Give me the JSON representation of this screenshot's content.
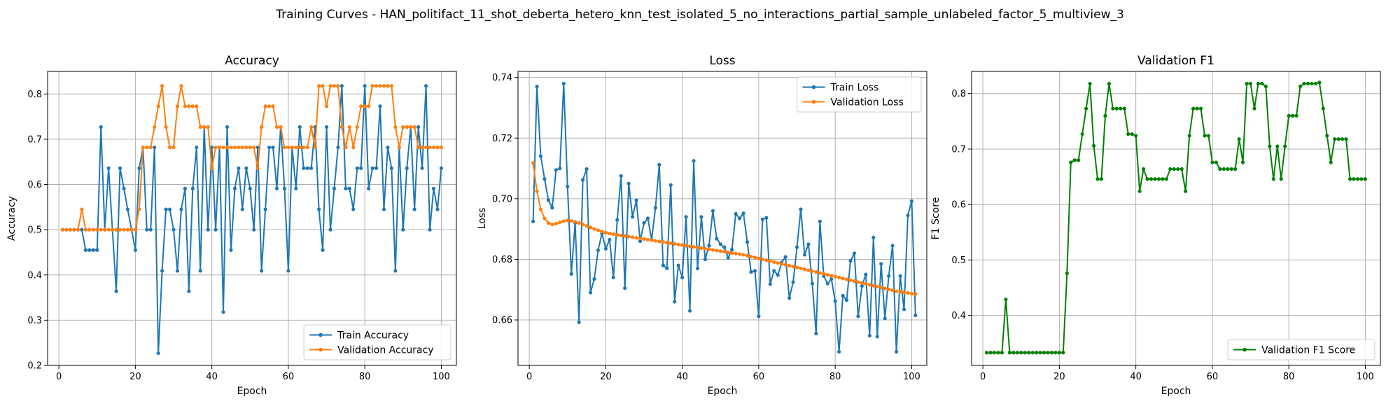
{
  "chart_data": {
    "type": "line",
    "suptitle": "Training Curves - HAN_politifact_11_shot_deberta_hetero_knn_test_isolated_5_no_interactions_partial_sample_unlabeled_factor_5_multiview_3",
    "colors": {
      "train": "#1f77b4",
      "validation": "#ff7f0e",
      "f1": "#008000",
      "grid": "#b0b0b0"
    },
    "subplots": [
      {
        "title": "Accuracy",
        "xlabel": "Epoch",
        "ylabel": "Accuracy",
        "xlim": [
          -2.95,
          103.95
        ],
        "ylim": [
          0.2,
          0.85
        ],
        "xticks": [
          0,
          20,
          40,
          60,
          80,
          100
        ],
        "xtick_labels": [
          "0",
          "20",
          "40",
          "60",
          "80",
          "100"
        ],
        "yticks": [
          0.2,
          0.3,
          0.4,
          0.5,
          0.6,
          0.7,
          0.8
        ],
        "ytick_labels": [
          "0.2",
          "0.3",
          "0.4",
          "0.5",
          "0.6",
          "0.7",
          "0.8"
        ],
        "legend": "lower-right",
        "series": [
          {
            "name": "Train Accuracy",
            "color_key": "train",
            "values": [
              0.5,
              0.5,
              0.5,
              0.5,
              0.5,
              0.5,
              0.455,
              0.455,
              0.455,
              0.455,
              0.727,
              0.5,
              0.636,
              0.5,
              0.364,
              0.636,
              0.591,
              0.545,
              0.5,
              0.455,
              0.636,
              0.682,
              0.5,
              0.5,
              0.682,
              0.227,
              0.409,
              0.545,
              0.545,
              0.5,
              0.409,
              0.545,
              0.591,
              0.364,
              0.591,
              0.682,
              0.409,
              0.727,
              0.5,
              0.682,
              0.5,
              0.682,
              0.318,
              0.727,
              0.455,
              0.591,
              0.636,
              0.545,
              0.636,
              0.591,
              0.5,
              0.682,
              0.409,
              0.545,
              0.682,
              0.682,
              0.591,
              0.727,
              0.591,
              0.409,
              0.682,
              0.591,
              0.727,
              0.636,
              0.636,
              0.636,
              0.727,
              0.545,
              0.455,
              0.727,
              0.5,
              0.591,
              0.682,
              0.818,
              0.591,
              0.591,
              0.545,
              0.636,
              0.636,
              0.818,
              0.591,
              0.636,
              0.636,
              0.773,
              0.545,
              0.682,
              0.636,
              0.409,
              0.682,
              0.5,
              0.636,
              0.727,
              0.545,
              0.727,
              0.636,
              0.818,
              0.5,
              0.591,
              0.545,
              0.636
            ]
          },
          {
            "name": "Validation Accuracy",
            "color_key": "validation",
            "values": [
              0.5,
              0.5,
              0.5,
              0.5,
              0.5,
              0.545,
              0.5,
              0.5,
              0.5,
              0.5,
              0.5,
              0.5,
              0.5,
              0.5,
              0.5,
              0.5,
              0.5,
              0.5,
              0.5,
              0.5,
              0.545,
              0.682,
              0.682,
              0.682,
              0.727,
              0.773,
              0.818,
              0.727,
              0.682,
              0.682,
              0.773,
              0.818,
              0.773,
              0.773,
              0.773,
              0.773,
              0.727,
              0.727,
              0.727,
              0.636,
              0.682,
              0.682,
              0.682,
              0.682,
              0.682,
              0.682,
              0.682,
              0.682,
              0.682,
              0.682,
              0.682,
              0.636,
              0.727,
              0.773,
              0.773,
              0.773,
              0.727,
              0.727,
              0.682,
              0.682,
              0.682,
              0.682,
              0.682,
              0.682,
              0.682,
              0.727,
              0.682,
              0.818,
              0.818,
              0.773,
              0.818,
              0.818,
              0.818,
              0.727,
              0.682,
              0.727,
              0.682,
              0.727,
              0.773,
              0.773,
              0.773,
              0.818,
              0.818,
              0.818,
              0.818,
              0.818,
              0.818,
              0.727,
              0.682,
              0.727,
              0.727,
              0.727,
              0.727,
              0.682,
              0.682,
              0.682,
              0.682,
              0.682,
              0.682,
              0.682
            ]
          }
        ]
      },
      {
        "title": "Loss",
        "xlabel": "Epoch",
        "ylabel": "Loss",
        "xlim": [
          -2.95,
          103.95
        ],
        "ylim": [
          0.645,
          0.742
        ],
        "xticks": [
          0,
          20,
          40,
          60,
          80,
          100
        ],
        "xtick_labels": [
          "0",
          "20",
          "40",
          "60",
          "80",
          "100"
        ],
        "yticks": [
          0.66,
          0.68,
          0.7,
          0.72,
          0.74
        ],
        "ytick_labels": [
          "0.66",
          "0.68",
          "0.70",
          "0.72",
          "0.74"
        ],
        "legend": "upper-right",
        "series": [
          {
            "name": "Train Loss",
            "color_key": "train",
            "values": [
              0.6925,
              0.737,
              0.714,
              0.7065,
              0.6995,
              0.697,
              0.7095,
              0.71,
              0.738,
              0.704,
              0.6752,
              0.692,
              0.6592,
              0.7062,
              0.7098,
              0.669,
              0.6735,
              0.683,
              0.6885,
              0.6835,
              0.6865,
              0.674,
              0.693,
              0.7075,
              0.6705,
              0.705,
              0.694,
              0.6995,
              0.686,
              0.692,
              0.6935,
              0.6865,
              0.697,
              0.7112,
              0.678,
              0.677,
              0.7045,
              0.666,
              0.678,
              0.674,
              0.694,
              0.663,
              0.7125,
              0.677,
              0.694,
              0.68,
              0.6845,
              0.696,
              0.6868,
              0.685,
              0.684,
              0.6805,
              0.6832,
              0.695,
              0.6935,
              0.6952,
              0.6857,
              0.6758,
              0.6762,
              0.6612,
              0.6932,
              0.6937,
              0.6718,
              0.6762,
              0.6748,
              0.679,
              0.6808,
              0.6672,
              0.6725,
              0.684,
              0.6965,
              0.6815,
              0.685,
              0.672,
              0.6555,
              0.6925,
              0.6745,
              0.672,
              0.6735,
              0.6662,
              0.6495,
              0.668,
              0.6665,
              0.6795,
              0.682,
              0.6612,
              0.6712,
              0.675,
              0.6548,
              0.6872,
              0.6545,
              0.6785,
              0.6605,
              0.6745,
              0.6845,
              0.6495,
              0.6745,
              0.6635,
              0.6945,
              0.6992,
              0.6615
            ]
          },
          {
            "name": "Validation Loss",
            "color_key": "validation",
            "values": [
              0.7118,
              0.7025,
              0.6965,
              0.6935,
              0.692,
              0.6915,
              0.6918,
              0.6922,
              0.6926,
              0.6928,
              0.6927,
              0.6924,
              0.692,
              0.6915,
              0.691,
              0.6905,
              0.69,
              0.6896,
              0.6892,
              0.6888,
              0.6885,
              0.6883,
              0.6881,
              0.6879,
              0.6877,
              0.6875,
              0.6873,
              0.6871,
              0.6869,
              0.6867,
              0.6865,
              0.6863,
              0.6861,
              0.6859,
              0.6857,
              0.6855,
              0.6853,
              0.6851,
              0.6849,
              0.6847,
              0.6845,
              0.6843,
              0.6841,
              0.6839,
              0.6837,
              0.6835,
              0.6833,
              0.6831,
              0.6829,
              0.6827,
              0.6825,
              0.6823,
              0.6821,
              0.6819,
              0.6817,
              0.6815,
              0.6812,
              0.6809,
              0.6806,
              0.6803,
              0.68,
              0.6797,
              0.6794,
              0.6791,
              0.6788,
              0.6785,
              0.6782,
              0.6779,
              0.6776,
              0.6773,
              0.677,
              0.6767,
              0.6764,
              0.6761,
              0.6758,
              0.6755,
              0.6752,
              0.6749,
              0.6746,
              0.6743,
              0.674,
              0.6737,
              0.6734,
              0.6731,
              0.6728,
              0.6725,
              0.6722,
              0.6719,
              0.6716,
              0.6713,
              0.671,
              0.6707,
              0.6704,
              0.6701,
              0.6698,
              0.6695,
              0.6693,
              0.6691,
              0.6689,
              0.6687,
              0.6685
            ]
          }
        ]
      },
      {
        "title": "Validation F1",
        "xlabel": "Epoch",
        "ylabel": "F1 Score",
        "xlim": [
          -2.95,
          103.95
        ],
        "ylim": [
          0.31,
          0.84
        ],
        "xticks": [
          0,
          20,
          40,
          60,
          80,
          100
        ],
        "xtick_labels": [
          "0",
          "20",
          "40",
          "60",
          "80",
          "100"
        ],
        "yticks": [
          0.4,
          0.5,
          0.6,
          0.7,
          0.8
        ],
        "ytick_labels": [
          "0.4",
          "0.5",
          "0.6",
          "0.7",
          "0.8"
        ],
        "legend": "lower-right",
        "series": [
          {
            "name": "Validation F1 Score",
            "color_key": "f1",
            "values": [
              0.333,
              0.333,
              0.333,
              0.333,
              0.333,
              0.429,
              0.333,
              0.333,
              0.333,
              0.333,
              0.333,
              0.333,
              0.333,
              0.333,
              0.333,
              0.333,
              0.333,
              0.333,
              0.333,
              0.333,
              0.333,
              0.476,
              0.676,
              0.68,
              0.68,
              0.727,
              0.773,
              0.818,
              0.706,
              0.646,
              0.646,
              0.76,
              0.818,
              0.773,
              0.773,
              0.773,
              0.773,
              0.727,
              0.727,
              0.724,
              0.624,
              0.664,
              0.646,
              0.646,
              0.646,
              0.646,
              0.646,
              0.646,
              0.664,
              0.664,
              0.664,
              0.664,
              0.624,
              0.724,
              0.773,
              0.773,
              0.773,
              0.724,
              0.724,
              0.676,
              0.676,
              0.664,
              0.664,
              0.664,
              0.664,
              0.664,
              0.718,
              0.676,
              0.818,
              0.818,
              0.773,
              0.818,
              0.818,
              0.813,
              0.705,
              0.646,
              0.705,
              0.646,
              0.705,
              0.76,
              0.76,
              0.76,
              0.813,
              0.818,
              0.818,
              0.818,
              0.818,
              0.82,
              0.773,
              0.724,
              0.676,
              0.718,
              0.718,
              0.718,
              0.718,
              0.646,
              0.646,
              0.646,
              0.646,
              0.646
            ]
          }
        ]
      }
    ]
  }
}
